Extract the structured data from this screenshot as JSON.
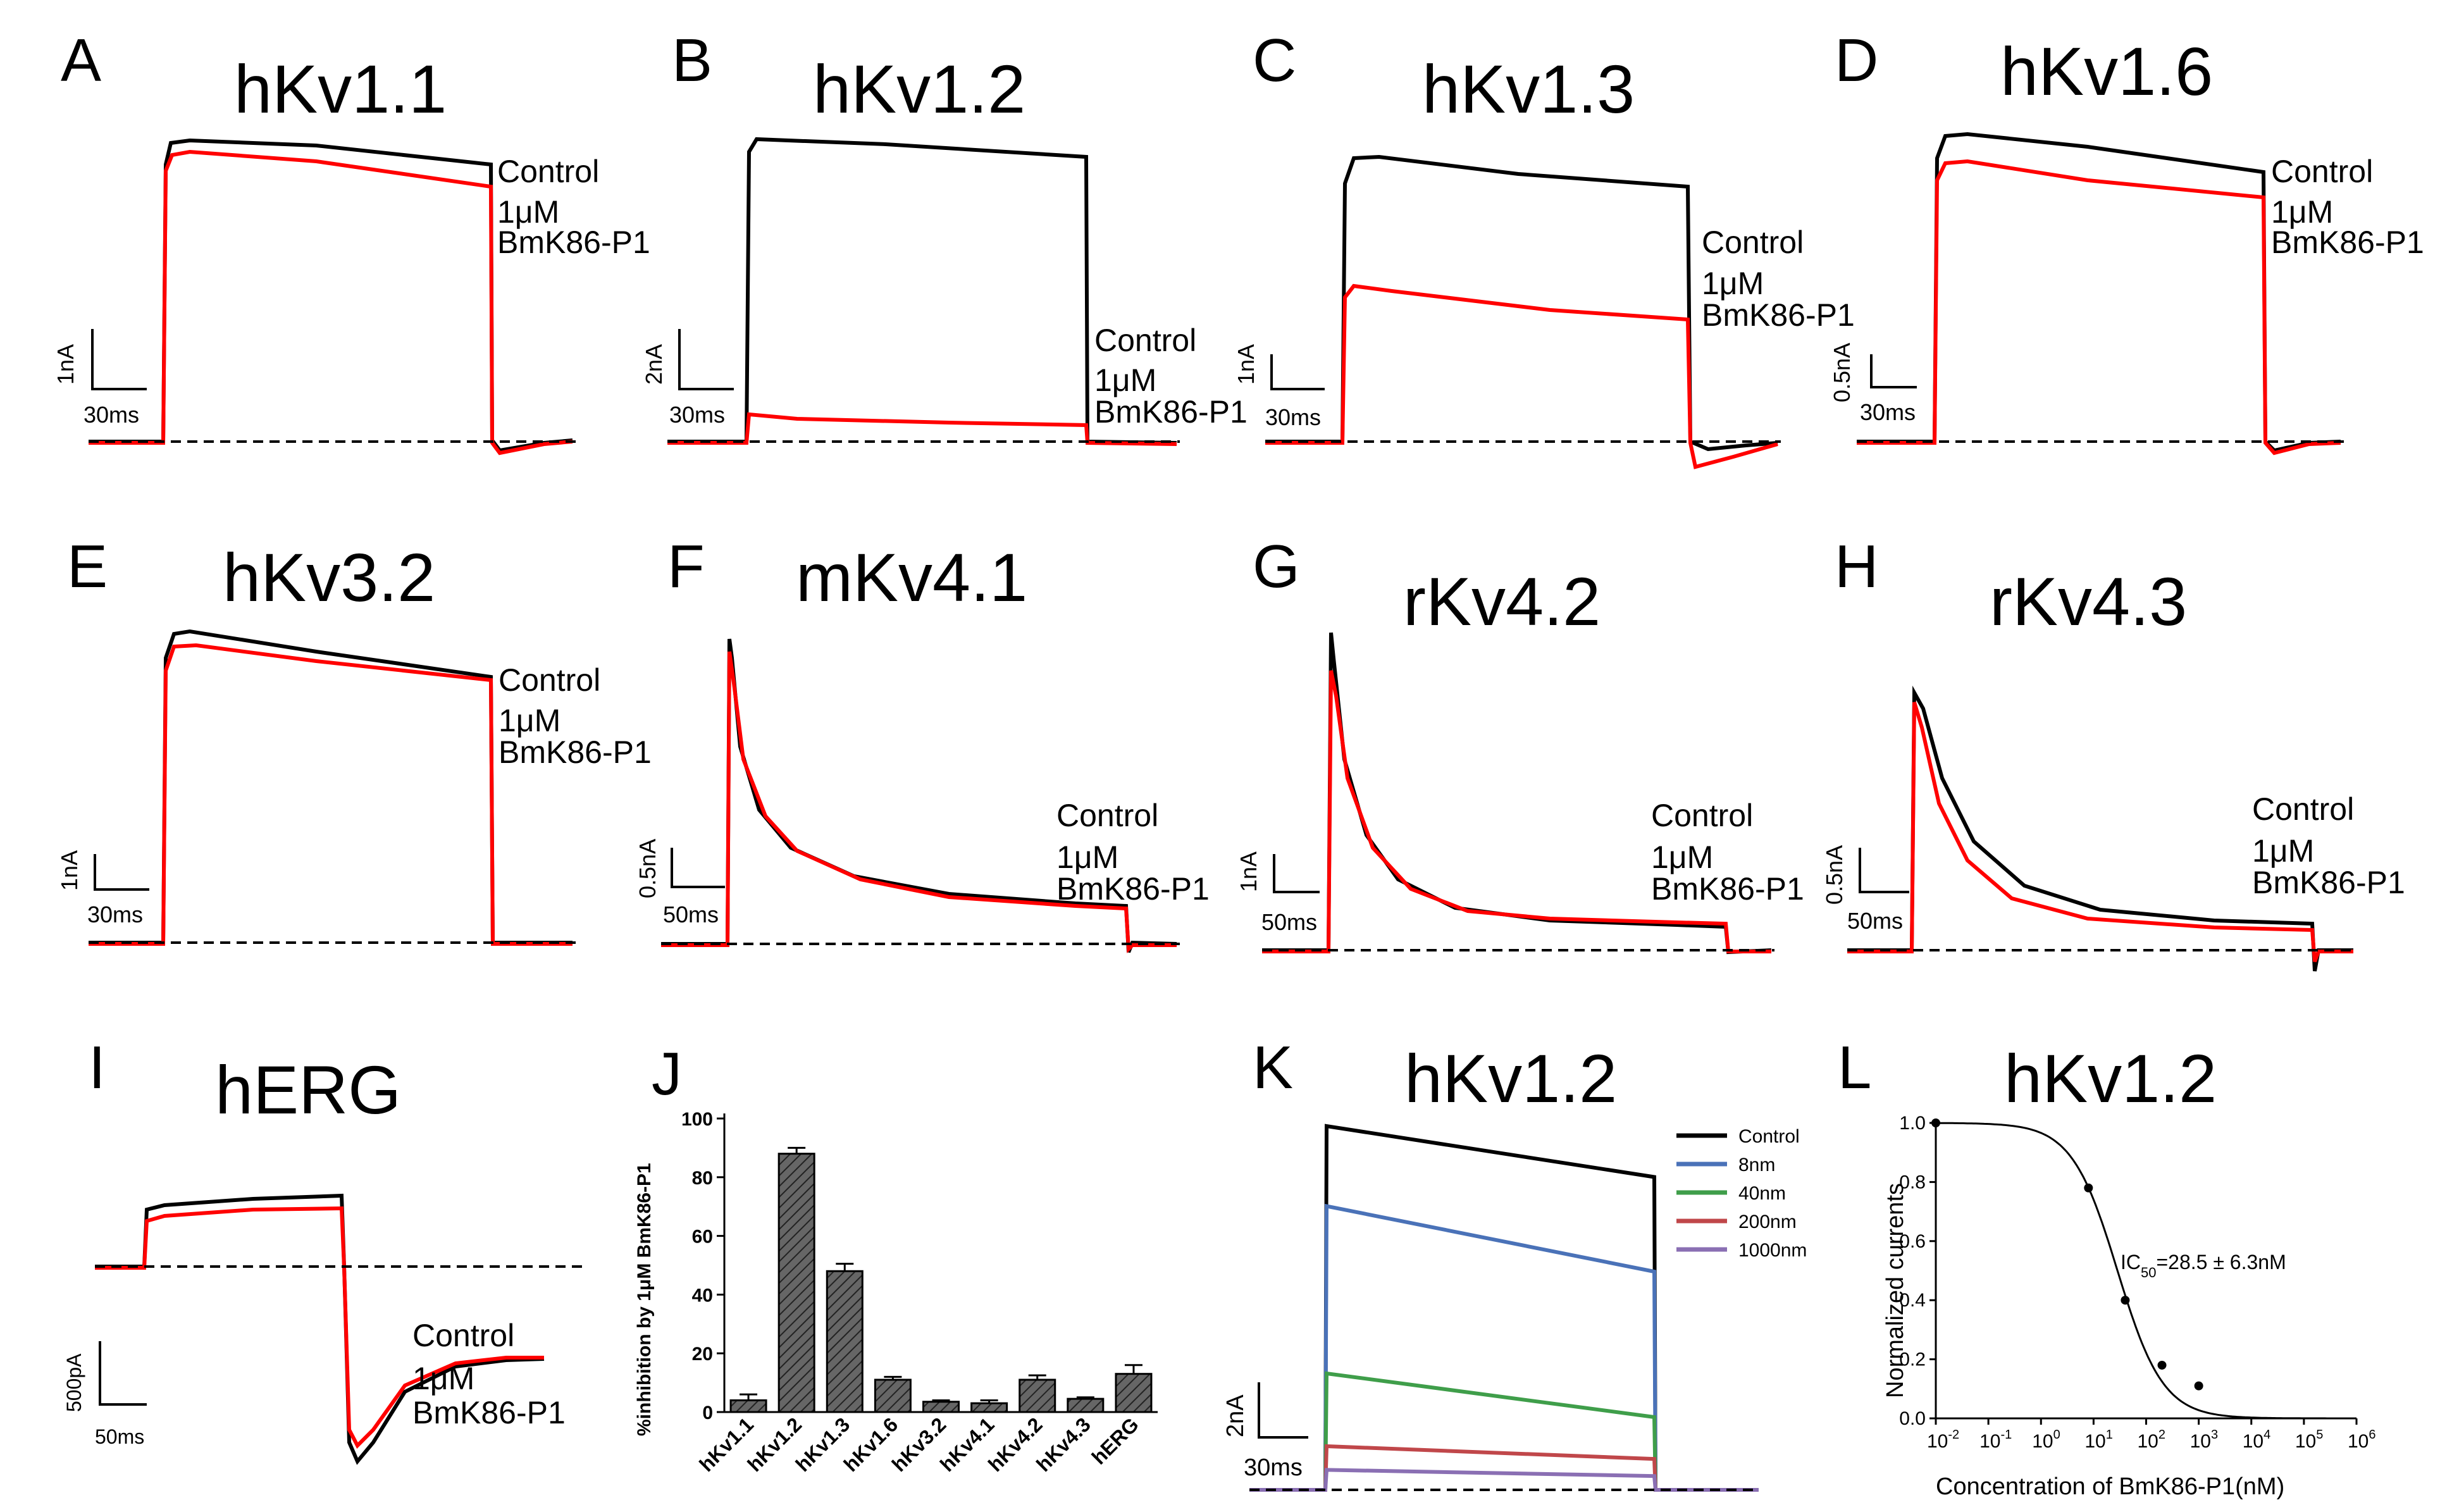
{
  "colors": {
    "control": "#000000",
    "drug": "#ff0000",
    "bar": "#666666",
    "series_8nm": "#4a72b8",
    "series_40nm": "#3f9e4a",
    "series_200nm": "#c0474a",
    "series_1000nm": "#8a6fb3"
  },
  "panels": [
    {
      "letter": "A",
      "title": "hKv1.1",
      "control_label": "Control",
      "drug_label_1": "1μM",
      "drug_label_2": "BmK86-P1",
      "y_scale": "1nA",
      "x_scale": "30ms"
    },
    {
      "letter": "B",
      "title": "hKv1.2",
      "control_label": "Control",
      "drug_label_1": "1μM",
      "drug_label_2": "BmK86-P1",
      "y_scale": "2nA",
      "x_scale": "30ms"
    },
    {
      "letter": "C",
      "title": "hKv1.3",
      "control_label": "Control",
      "drug_label_1": "1μM",
      "drug_label_2": "BmK86-P1",
      "y_scale": "1nA",
      "x_scale": "30ms"
    },
    {
      "letter": "D",
      "title": "hKv1.6",
      "control_label": "Control",
      "drug_label_1": "1μM",
      "drug_label_2": "BmK86-P1",
      "y_scale": "0.5nA",
      "x_scale": "30ms"
    },
    {
      "letter": "E",
      "title": "hKv3.2",
      "control_label": "Control",
      "drug_label_1": "1μM",
      "drug_label_2": "BmK86-P1",
      "y_scale": "1nA",
      "x_scale": "30ms"
    },
    {
      "letter": "F",
      "title": "mKv4.1",
      "control_label": "Control",
      "drug_label_1": "1μM",
      "drug_label_2": "BmK86-P1",
      "y_scale": "0.5nA",
      "x_scale": "50ms"
    },
    {
      "letter": "G",
      "title": "rKv4.2",
      "control_label": "Control",
      "drug_label_1": "1μM",
      "drug_label_2": "BmK86-P1",
      "y_scale": "1nA",
      "x_scale": "50ms"
    },
    {
      "letter": "H",
      "title": "rKv4.3",
      "control_label": "Control",
      "drug_label_1": "1μM",
      "drug_label_2": "BmK86-P1",
      "y_scale": "0.5nA",
      "x_scale": "50ms"
    },
    {
      "letter": "I",
      "title": "hERG",
      "control_label": "Control",
      "drug_label_1": "1μM",
      "drug_label_2": "BmK86-P1",
      "y_scale": "500pA",
      "x_scale": "50ms"
    }
  ],
  "chart_data": [
    {
      "panel": "J",
      "type": "bar",
      "ylabel": "%inhibition by 1μM BmK86-P1",
      "categories": [
        "hKv1.1",
        "hKv1.2",
        "hKv1.3",
        "hKv1.6",
        "hKv3.2",
        "hKv4.1",
        "hKv4.2",
        "hKv4.3",
        "hERG"
      ],
      "values": [
        4,
        88,
        48,
        11,
        3.5,
        3,
        11,
        4.5,
        13
      ],
      "errors": [
        2,
        2,
        2.5,
        1,
        0.5,
        1,
        1.5,
        0.5,
        3
      ],
      "ylim": [
        0,
        100
      ],
      "yticks": [
        0,
        20,
        40,
        60,
        80,
        100
      ]
    },
    {
      "panel": "K",
      "type": "line",
      "title": "hKv1.2",
      "y_scale": "2nA",
      "x_scale": "30ms",
      "series": [
        {
          "name": "Control",
          "start": 1.0,
          "end": 0.86
        },
        {
          "name": "8nm",
          "start": 0.78,
          "end": 0.6
        },
        {
          "name": "40nm",
          "start": 0.32,
          "end": 0.2
        },
        {
          "name": "200nm",
          "start": 0.12,
          "end": 0.085
        },
        {
          "name": "1000nm",
          "start": 0.055,
          "end": 0.038
        }
      ]
    },
    {
      "panel": "L",
      "type": "scatter",
      "title": "hKv1.2",
      "xlabel": "Concentration of BmK86-P1(nM)",
      "ylabel": "Normalized currents",
      "ic50_text": "IC50=28.5 ± 6.3nM",
      "ic50_nM": 28.5,
      "x_log_range": [
        -2,
        6
      ],
      "ylim": [
        0,
        1.0
      ],
      "yticks": [
        "0.0",
        "0.2",
        "0.4",
        "0.6",
        "0.8",
        "1.0"
      ],
      "x": [
        0.01,
        8,
        40,
        200,
        1000
      ],
      "y": [
        1.0,
        0.78,
        0.4,
        0.18,
        0.11
      ]
    }
  ]
}
